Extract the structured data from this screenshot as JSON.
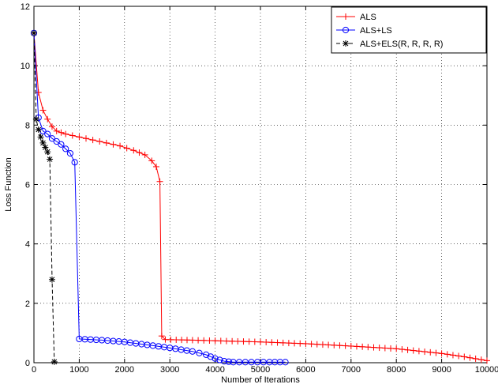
{
  "chart_data": {
    "type": "line",
    "title": "",
    "xlabel": "Number of Iterations",
    "ylabel": "Loss Function",
    "xlim": [
      0,
      10000
    ],
    "ylim": [
      0,
      12
    ],
    "xticks": [
      0,
      1000,
      2000,
      3000,
      4000,
      5000,
      6000,
      7000,
      8000,
      9000,
      10000
    ],
    "yticks": [
      0,
      2,
      4,
      6,
      8,
      10,
      12
    ],
    "grid": true,
    "legend_position": "top-right",
    "series": [
      {
        "name": "ALS",
        "color": "#ff0000",
        "line": "solid",
        "marker": "plus",
        "points": [
          [
            0,
            11.1
          ],
          [
            100,
            9.1
          ],
          [
            200,
            8.5
          ],
          [
            300,
            8.2
          ],
          [
            400,
            7.95
          ],
          [
            500,
            7.8
          ],
          [
            700,
            7.7
          ],
          [
            1000,
            7.6
          ],
          [
            1300,
            7.5
          ],
          [
            1600,
            7.4
          ],
          [
            1900,
            7.3
          ],
          [
            2200,
            7.15
          ],
          [
            2450,
            7.0
          ],
          [
            2600,
            6.8
          ],
          [
            2700,
            6.6
          ],
          [
            2780,
            6.1
          ],
          [
            2820,
            0.9
          ],
          [
            2900,
            0.78
          ],
          [
            3500,
            0.76
          ],
          [
            4000,
            0.74
          ],
          [
            5000,
            0.7
          ],
          [
            6000,
            0.64
          ],
          [
            7000,
            0.56
          ],
          [
            8000,
            0.47
          ],
          [
            9000,
            0.31
          ],
          [
            9500,
            0.2
          ],
          [
            10000,
            0.07
          ]
        ]
      },
      {
        "name": "ALS+LS",
        "color": "#0000ff",
        "line": "solid",
        "marker": "circle",
        "points": [
          [
            0,
            11.1
          ],
          [
            100,
            8.25
          ],
          [
            200,
            7.8
          ],
          [
            300,
            7.7
          ],
          [
            400,
            7.55
          ],
          [
            500,
            7.45
          ],
          [
            600,
            7.35
          ],
          [
            700,
            7.2
          ],
          [
            800,
            7.05
          ],
          [
            900,
            6.75
          ],
          [
            1000,
            0.8
          ],
          [
            1500,
            0.76
          ],
          [
            2000,
            0.7
          ],
          [
            2500,
            0.6
          ],
          [
            3000,
            0.5
          ],
          [
            3500,
            0.38
          ],
          [
            3800,
            0.27
          ],
          [
            4000,
            0.14
          ],
          [
            4200,
            0.05
          ],
          [
            4400,
            0.02
          ],
          [
            4800,
            0.02
          ],
          [
            5200,
            0.02
          ],
          [
            5550,
            0.02
          ]
        ]
      },
      {
        "name": "ALS+ELS(R, R, R, R)",
        "color": "#000000",
        "line": "dashed",
        "marker": "asterisk",
        "points": [
          [
            0,
            11.1
          ],
          [
            50,
            8.2
          ],
          [
            100,
            7.85
          ],
          [
            150,
            7.6
          ],
          [
            200,
            7.4
          ],
          [
            250,
            7.25
          ],
          [
            300,
            7.1
          ],
          [
            350,
            6.85
          ],
          [
            400,
            2.8
          ],
          [
            450,
            0.03
          ]
        ]
      }
    ]
  }
}
